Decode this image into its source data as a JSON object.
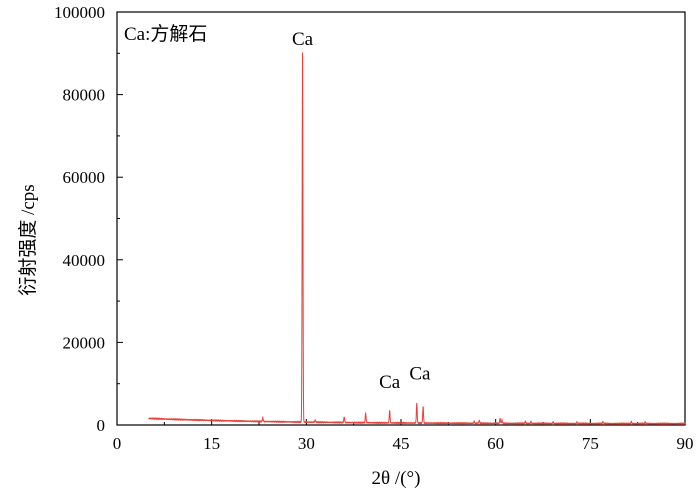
{
  "chart_data": {
    "type": "line",
    "title": "",
    "xlabel": "2θ /(°)",
    "ylabel": "衍射强度 /cps",
    "xlim": [
      0,
      90
    ],
    "ylim": [
      0,
      100000
    ],
    "x_ticks": [
      0,
      15,
      30,
      45,
      60,
      75,
      90
    ],
    "y_ticks": [
      0,
      20000,
      40000,
      60000,
      80000,
      100000
    ],
    "x_tick_labels": [
      "0",
      "15",
      "30",
      "45",
      "60",
      "75",
      "90"
    ],
    "y_tick_labels": [
      "0",
      "20000",
      "40000",
      "60000",
      "80000",
      "100000"
    ],
    "legend_text": "Ca:方解石",
    "grid": false,
    "line_color": "#e8413a",
    "background": {
      "start_x": 5,
      "end_x": 90,
      "start_intensity": 1600,
      "end_intensity": 300
    },
    "peaks": [
      {
        "x": 23.1,
        "y": 900
      },
      {
        "x": 29.4,
        "y": 89500
      },
      {
        "x": 31.4,
        "y": 500
      },
      {
        "x": 36.0,
        "y": 1300
      },
      {
        "x": 39.4,
        "y": 2300
      },
      {
        "x": 43.2,
        "y": 3000
      },
      {
        "x": 47.5,
        "y": 4800
      },
      {
        "x": 48.5,
        "y": 4000
      },
      {
        "x": 56.6,
        "y": 500
      },
      {
        "x": 57.4,
        "y": 700
      },
      {
        "x": 60.7,
        "y": 1200
      },
      {
        "x": 61.0,
        "y": 800
      },
      {
        "x": 64.7,
        "y": 500
      },
      {
        "x": 65.6,
        "y": 500
      },
      {
        "x": 69.1,
        "y": 400
      },
      {
        "x": 72.9,
        "y": 400
      },
      {
        "x": 77.0,
        "y": 500
      },
      {
        "x": 81.5,
        "y": 500
      },
      {
        "x": 83.7,
        "y": 400
      }
    ],
    "annotations": [
      {
        "text": "Ca",
        "x": 29.4,
        "y": 92000
      },
      {
        "text": "Ca",
        "x": 43.2,
        "y": 9000
      },
      {
        "text": "Ca",
        "x": 48.0,
        "y": 11000
      }
    ]
  }
}
